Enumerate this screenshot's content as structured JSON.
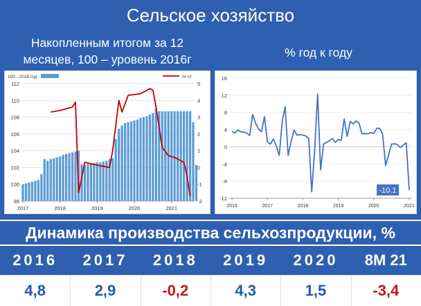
{
  "header": {
    "title": "Сельское хозяйство",
    "left_subtitle": "Накопленным итогом за 12 месяцев, 100 – уровень 2016г",
    "right_subtitle": "% год к году"
  },
  "chart_data": [
    {
      "type": "bar",
      "title": "",
      "legend": [
        {
          "name": "100 - 2016 год",
          "kind": "bar",
          "color": "#5b9bd5"
        },
        {
          "name": "% г/г",
          "kind": "line",
          "color": "#c00000"
        }
      ],
      "legend_position": "top",
      "x_ticks": [
        "2017",
        "2018",
        "2019",
        "2020",
        "2021"
      ],
      "y_left": {
        "min": 98,
        "max": 112,
        "ticks": [
          98,
          100,
          102,
          104,
          106,
          108,
          110,
          112
        ]
      },
      "y_right": {
        "min": -2,
        "max": 5,
        "ticks": [
          -2,
          -1,
          0,
          1,
          2,
          3,
          4,
          5
        ]
      },
      "grid": true,
      "bar_series": {
        "name": "100 - 2016 год",
        "start": "2017-01",
        "values": [
          100.0,
          100.1,
          100.2,
          100.3,
          100.4,
          100.5,
          101.2,
          103.0,
          102.8,
          103.0,
          103.1,
          103.2,
          103.3,
          103.5,
          103.6,
          103.7,
          103.8,
          103.9,
          104.0,
          102.4,
          102.3,
          102.4,
          102.5,
          102.5,
          102.6,
          102.6,
          102.7,
          102.8,
          103.0,
          103.1,
          105.4,
          106.6,
          107.0,
          107.3,
          107.4,
          107.5,
          107.6,
          107.7,
          107.9,
          108.0,
          108.1,
          108.3,
          108.5,
          109.0,
          108.7,
          108.7,
          108.7,
          108.7,
          108.7,
          108.7,
          108.7,
          108.7,
          108.7,
          108.7,
          108.7,
          107.4,
          102.3
        ]
      },
      "line_series": {
        "name": "% г/г",
        "x": [
          "2017-10",
          "2018-01",
          "2018-05",
          "2018-06",
          "2018-07",
          "2018-09",
          "2019-02",
          "2019-05",
          "2019-06",
          "2019-08",
          "2019-09",
          "2019-11",
          "2020-03",
          "2020-06",
          "2020-07",
          "2020-08",
          "2020-10",
          "2020-12",
          "2021-02",
          "2021-05",
          "2021-06",
          "2021-07"
        ],
        "values": [
          3.3,
          3.4,
          3.6,
          3.9,
          -1.5,
          0.3,
          0.1,
          0.0,
          1.0,
          4.0,
          3.3,
          4.3,
          4.4,
          4.7,
          4.6,
          3.6,
          1.2,
          0.7,
          0.6,
          0.3,
          -0.5,
          -1.7
        ]
      }
    },
    {
      "type": "line",
      "title": "",
      "x_ticks": [
        "2016",
        "2017",
        "2018",
        "2019",
        "2020",
        "2021"
      ],
      "ylim": [
        -12,
        16
      ],
      "y_ticks": [
        -12,
        -8,
        -4,
        0,
        4,
        8,
        12,
        16
      ],
      "grid": true,
      "series": [
        {
          "color": "#4472c4",
          "start": "2016-01",
          "values": [
            3.6,
            3.2,
            3.9,
            3.5,
            3.4,
            3.2,
            2.6,
            7.5,
            5.5,
            4.1,
            3.5,
            7.0,
            1.2,
            0.6,
            1.8,
            0.2,
            -2.0,
            5.8,
            9.3,
            -2.0,
            1.1,
            3.9,
            2.7,
            2.8,
            2.7,
            2.5,
            1.9,
            -10.5,
            -0.6,
            12.3,
            -5.4,
            0.6,
            1.0,
            1.4,
            1.9,
            1.0,
            1.7,
            1.5,
            6.5,
            2.4,
            5.9,
            5.3,
            6.0,
            5.5,
            3.0,
            3.1,
            3.0,
            3.3,
            3.1,
            4.3,
            4.3,
            2.9,
            -4.4,
            -2.0,
            0.6,
            0.7,
            0.5,
            -0.2,
            0.4,
            0.9,
            -10.1
          ]
        }
      ],
      "annotation": "-10.1"
    }
  ],
  "dynamics": {
    "title": "Динамика производства сельхозпродукции, %",
    "years": [
      "2016",
      "2017",
      "2018",
      "2019",
      "2020",
      "8M 21"
    ],
    "values": [
      "4,8",
      "2,9",
      "-0,2",
      "4,3",
      "1,5",
      "-3,4"
    ],
    "signs": [
      "pos",
      "pos",
      "neg",
      "pos",
      "pos",
      "neg"
    ]
  },
  "colors": {
    "header_bg": "#2e5fb0",
    "bar": "#5b9bd5",
    "red_line": "#c00000",
    "blue_line": "#4472c4",
    "positive": "#1f58b3",
    "negative": "#c01818"
  }
}
